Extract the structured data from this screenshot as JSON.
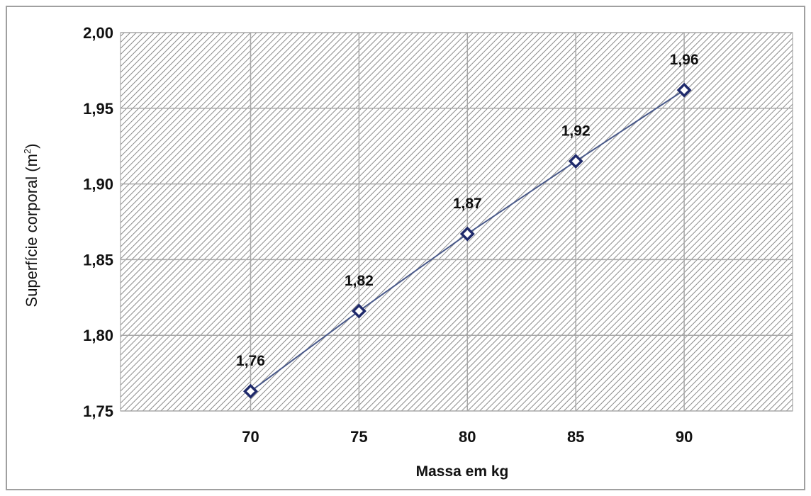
{
  "chart_data": {
    "type": "line",
    "title": "",
    "xlabel": "Massa em kg",
    "ylabel": "Superfície corporal (m²)",
    "x": [
      70,
      75,
      80,
      85,
      90
    ],
    "x_tick_labels": [
      "70",
      "75",
      "80",
      "85",
      "90"
    ],
    "xlim": [
      64,
      95
    ],
    "ylim": [
      1.75,
      2.0
    ],
    "y_ticks": [
      1.75,
      1.8,
      1.85,
      1.9,
      1.95,
      2.0
    ],
    "y_tick_labels": [
      "1,75",
      "1,80",
      "1,85",
      "1,90",
      "1,95",
      "2,00"
    ],
    "series": [
      {
        "values": [
          1.763,
          1.816,
          1.867,
          1.915,
          1.962
        ],
        "data_labels": [
          "1,76",
          "1,82",
          "1,87",
          "1,92",
          "1,96"
        ],
        "color": "#1f2a6b",
        "line_color": "#4a5a8a",
        "marker": "diamond"
      }
    ],
    "grid": true,
    "plot_pattern": "diagonal-hatch",
    "legend": "none"
  }
}
